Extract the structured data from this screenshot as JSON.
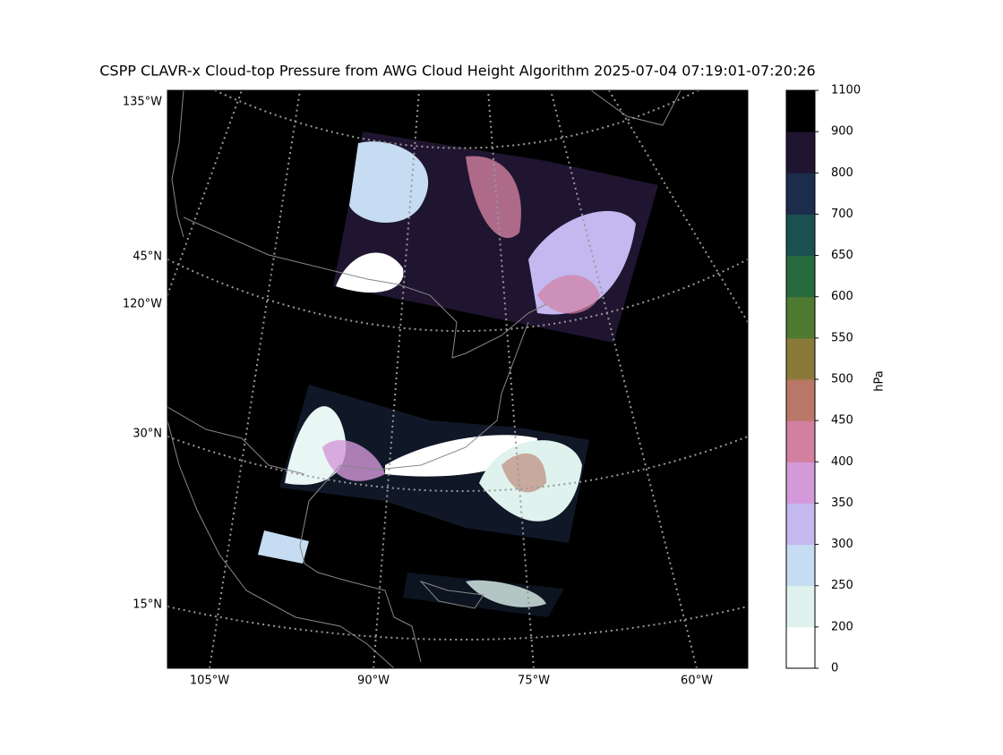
{
  "title": "CSPP CLAVR-x Cloud-top Pressure from AWG Cloud Height Algorithm 2025-07-04 07:19:01-07:20:26",
  "map": {
    "lat_labels": [
      "45°N",
      "30°N",
      "15°N"
    ],
    "lon_labels_left": [
      "135°W",
      "120°W"
    ],
    "lon_labels_bottom": [
      "105°W",
      "90°W",
      "75°W",
      "60°W"
    ]
  },
  "colorbar": {
    "label": "hPa",
    "ticks": [
      0,
      200,
      250,
      300,
      350,
      400,
      450,
      500,
      550,
      600,
      650,
      700,
      800,
      900,
      1100
    ],
    "colors": [
      "#ffffff",
      "#dff2ee",
      "#c6dcf2",
      "#c3b8f0",
      "#d399d8",
      "#d27fa0",
      "#b97867",
      "#8a7a3a",
      "#4e7a32",
      "#276a3e",
      "#1a5050",
      "#1c2c4c",
      "#1f1530",
      "#000000"
    ]
  }
}
